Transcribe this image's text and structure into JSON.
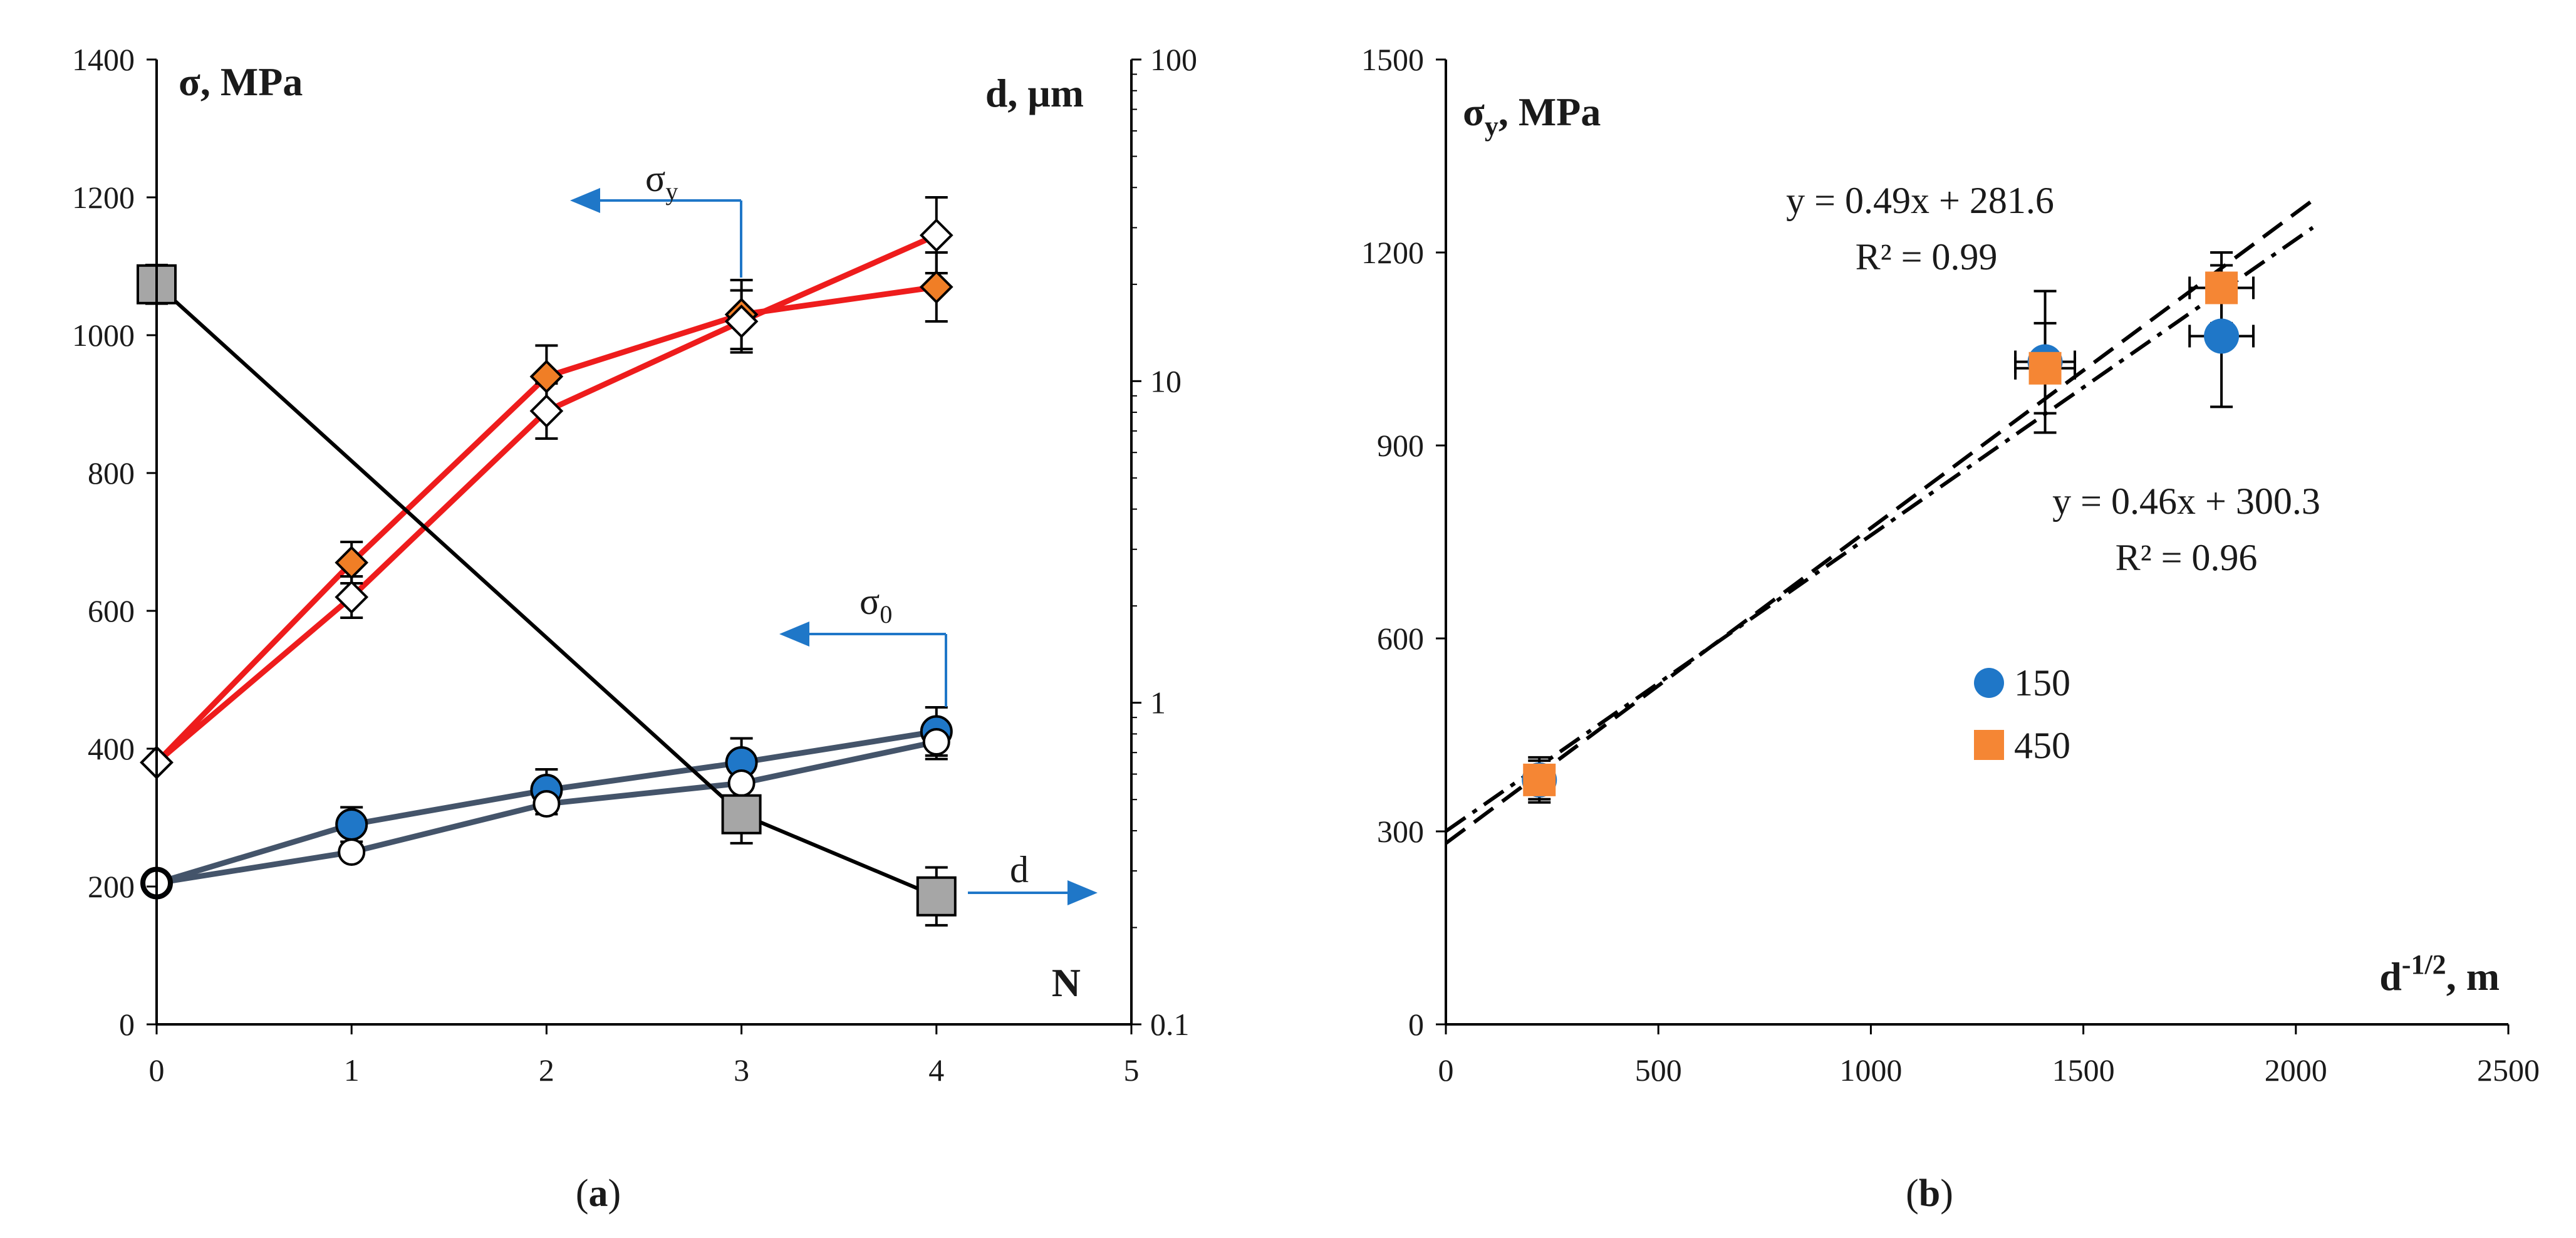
{
  "chart_data": [
    {
      "id": "a",
      "type": "line",
      "caption_prefix": "(",
      "caption_letter": "a",
      "caption_suffix": ")",
      "x": [
        0,
        1,
        2,
        3,
        4
      ],
      "xlim": [
        0,
        5
      ],
      "x_ticks": [
        "0",
        "1",
        "2",
        "3",
        "4",
        "5"
      ],
      "ylim": [
        0,
        1400
      ],
      "y_ticks": [
        "0",
        "200",
        "400",
        "600",
        "800",
        "1000",
        "1200",
        "1400"
      ],
      "y2lim_log": [
        0.1,
        100
      ],
      "y2_ticks": [
        "0.1",
        "1",
        "10",
        "100"
      ],
      "ylabel_sym": "σ",
      "ylabel_unit": ", MPa",
      "y2label_sym": "d",
      "y2label_unit": ", μm",
      "xlabel": "N",
      "series": [
        {
          "name": "σy (450)",
          "axis": "left",
          "marker": "diamond",
          "fill": "#f07e26",
          "line": "#ee1c1c",
          "values": [
            380,
            670,
            940,
            1030,
            1070
          ],
          "err": [
            0,
            30,
            45,
            50,
            50
          ]
        },
        {
          "name": "σy (150)",
          "axis": "left",
          "marker": "diamond",
          "fill": "#ffffff",
          "line": "#ee1c1c",
          "values": [
            380,
            620,
            890,
            1020,
            1145
          ],
          "err": [
            0,
            30,
            40,
            45,
            55
          ]
        },
        {
          "name": "σ0 (150)",
          "axis": "left",
          "marker": "circle",
          "fill": "#1f77c8",
          "line": "#44546a",
          "values": [
            205,
            290,
            340,
            380,
            425
          ],
          "err": [
            0,
            25,
            30,
            35,
            35
          ]
        },
        {
          "name": "σ0 (450)",
          "axis": "left",
          "marker": "circle",
          "fill": "#ffffff",
          "line": "#44546a",
          "values": [
            205,
            250,
            320,
            350,
            410
          ],
          "err": [
            0,
            0,
            15,
            20,
            25
          ]
        },
        {
          "name": "d",
          "axis": "right",
          "marker": "square",
          "fill": "#a6a6a6",
          "line": "#000000",
          "x": [
            0,
            3,
            4
          ],
          "values": [
            20,
            0.45,
            0.25
          ],
          "err_log": [
            0.06,
            0.09,
            0.09
          ]
        }
      ],
      "annotations": {
        "sigma_y": {
          "sym": "σ",
          "sub": "y"
        },
        "sigma_0": {
          "sym": "σ",
          "sub": "0"
        },
        "d_label": "d"
      }
    },
    {
      "id": "b",
      "type": "scatter",
      "caption_prefix": "(",
      "caption_letter": "b",
      "caption_suffix": ")",
      "xlim": [
        0,
        2500
      ],
      "x_ticks": [
        "0",
        "500",
        "1000",
        "1500",
        "2000",
        "2500"
      ],
      "ylim": [
        0,
        1500
      ],
      "y_ticks": [
        "0",
        "300",
        "600",
        "900",
        "1200",
        "1500"
      ],
      "ylabel_sym": "σ",
      "ylabel_sub": "y",
      "ylabel_unit": ", MPa",
      "xlabel_main": "d",
      "xlabel_sup": "-1/2",
      "xlabel_unit": ", m",
      "series": [
        {
          "name": "150",
          "marker": "circle",
          "color": "#1f77c8",
          "x": [
            220,
            1410,
            1825
          ],
          "y": [
            380,
            1030,
            1070
          ],
          "xerr": [
            0,
            70,
            75
          ],
          "yerr": [
            30,
            110,
            110
          ]
        },
        {
          "name": "450",
          "marker": "square",
          "color": "#f58634",
          "x": [
            220,
            1410,
            1825
          ],
          "y": [
            380,
            1020,
            1145
          ],
          "xerr": [
            0,
            70,
            75
          ],
          "yerr": [
            35,
            70,
            55
          ]
        }
      ],
      "fits": [
        {
          "slope": 0.49,
          "intercept": 281.6,
          "equation": "y = 0.49x + 281.6",
          "r2": "R² = 0.99",
          "style": "dash"
        },
        {
          "slope": 0.46,
          "intercept": 300.3,
          "equation": "y = 0.46x + 300.3",
          "r2": "R² = 0.96",
          "style": "dashdot"
        }
      ],
      "legend": [
        "150",
        "450"
      ]
    }
  ]
}
